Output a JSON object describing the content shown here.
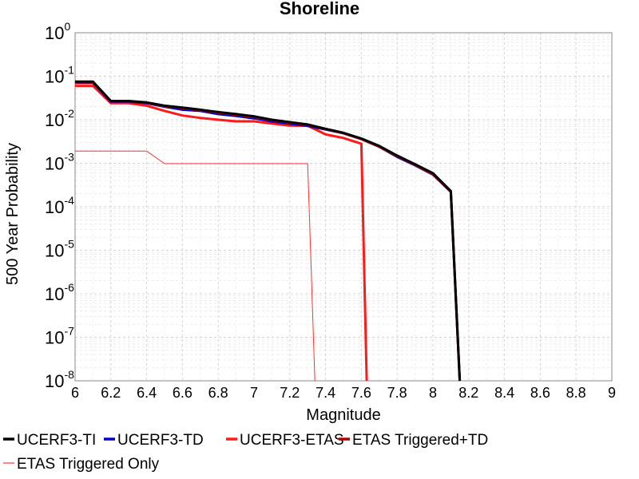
{
  "chart_data": {
    "type": "line",
    "title": "Shoreline",
    "xlabel": "Magnitude",
    "ylabel": "500 Year Probability",
    "xlim": [
      6,
      9
    ],
    "ylim": [
      1e-08,
      1
    ],
    "yscale": "log",
    "grid": true,
    "legend_position": "bottom",
    "x_ticks": [
      "6",
      "6.2",
      "6.4",
      "6.6",
      "6.8",
      "7",
      "7.2",
      "7.4",
      "7.6",
      "7.8",
      "8",
      "8.2",
      "8.4",
      "8.6",
      "8.8",
      "9"
    ],
    "y_ticks": [
      {
        "base": "10",
        "exp": "0",
        "value": 1
      },
      {
        "base": "10",
        "exp": "-1",
        "value": 0.1
      },
      {
        "base": "10",
        "exp": "-2",
        "value": 0.01
      },
      {
        "base": "10",
        "exp": "-3",
        "value": 0.001
      },
      {
        "base": "10",
        "exp": "-4",
        "value": 0.0001
      },
      {
        "base": "10",
        "exp": "-5",
        "value": 1e-05
      },
      {
        "base": "10",
        "exp": "-6",
        "value": 1e-06
      },
      {
        "base": "10",
        "exp": "-7",
        "value": 1e-07
      },
      {
        "base": "10",
        "exp": "-8",
        "value": 1e-08
      }
    ],
    "series": [
      {
        "name": "UCERF3-TI",
        "color": "#000000",
        "width": 3,
        "x": [
          6.0,
          6.1,
          6.2,
          6.3,
          6.4,
          6.5,
          6.6,
          6.7,
          6.8,
          6.9,
          7.0,
          7.1,
          7.2,
          7.3,
          7.4,
          7.5,
          7.6,
          7.7,
          7.8,
          7.9,
          8.0,
          8.1,
          8.15
        ],
        "y": [
          0.075,
          0.075,
          0.027,
          0.027,
          0.025,
          0.021,
          0.019,
          0.017,
          0.015,
          0.0135,
          0.012,
          0.01,
          0.0088,
          0.0078,
          0.0062,
          0.005,
          0.0037,
          0.0025,
          0.0015,
          0.00095,
          0.00059,
          0.00023,
          1e-08
        ]
      },
      {
        "name": "UCERF3-TD",
        "color": "#0000cc",
        "width": 3,
        "x": [
          6.0,
          6.1,
          6.2,
          6.3,
          6.4,
          6.5,
          6.6,
          6.7,
          6.8,
          6.9,
          7.0,
          7.1,
          7.2,
          7.3,
          7.4,
          7.5,
          7.6,
          7.7,
          7.8,
          7.9,
          8.0,
          8.1,
          8.15
        ],
        "y": [
          0.07,
          0.07,
          0.026,
          0.026,
          0.024,
          0.02,
          0.017,
          0.016,
          0.0135,
          0.0122,
          0.0108,
          0.0092,
          0.0081,
          0.0072,
          0.006,
          0.0049,
          0.0036,
          0.0024,
          0.0014,
          0.0009,
          0.00055,
          0.00022,
          1e-08
        ]
      },
      {
        "name": "UCERF3-ETAS",
        "color": "#ff1a1a",
        "width": 3,
        "x": [
          6.0,
          6.1,
          6.2,
          6.3,
          6.4,
          6.5,
          6.6,
          6.7,
          6.8,
          6.9,
          7.0,
          7.1,
          7.2,
          7.3,
          7.4,
          7.5,
          7.6,
          7.63
        ],
        "y": [
          0.06,
          0.06,
          0.024,
          0.024,
          0.021,
          0.016,
          0.0125,
          0.011,
          0.01,
          0.0092,
          0.0092,
          0.0082,
          0.0073,
          0.0073,
          0.0046,
          0.0038,
          0.0028,
          1e-08
        ]
      },
      {
        "name": "ETAS Triggered+TD",
        "color": "#b30000",
        "width": 3,
        "x": [
          6.0,
          6.1,
          6.2,
          6.3,
          6.4,
          6.5,
          6.6,
          6.7,
          6.8,
          6.9,
          7.0,
          7.1,
          7.2,
          7.3,
          7.4,
          7.5,
          7.6,
          7.7,
          7.8,
          7.9,
          8.0,
          8.1,
          8.15
        ],
        "y": [
          0.072,
          0.072,
          0.0265,
          0.0265,
          0.0245,
          0.0205,
          0.0185,
          0.0165,
          0.0145,
          0.013,
          0.0115,
          0.0098,
          0.0086,
          0.0076,
          0.0061,
          0.0049,
          0.0036,
          0.0024,
          0.00145,
          0.00092,
          0.00056,
          0.00022,
          1e-08
        ]
      },
      {
        "name": "ETAS Triggered Only",
        "color": "#ff3333",
        "width": 1,
        "x": [
          6.0,
          6.1,
          6.2,
          6.3,
          6.4,
          6.5,
          6.6,
          6.7,
          6.8,
          6.9,
          7.0,
          7.1,
          7.2,
          7.3,
          7.34
        ],
        "y": [
          0.0019,
          0.0019,
          0.0019,
          0.0019,
          0.0019,
          0.00098,
          0.00098,
          0.00098,
          0.00098,
          0.00098,
          0.00098,
          0.00098,
          0.00098,
          0.00098,
          1e-08
        ]
      }
    ],
    "legend_rows": [
      [
        "UCERF3-TI",
        "UCERF3-TD",
        "UCERF3-ETAS",
        "ETAS Triggered+TD"
      ],
      [
        "ETAS Triggered Only"
      ]
    ]
  }
}
